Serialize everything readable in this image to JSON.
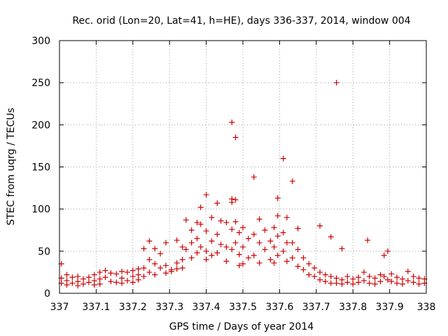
{
  "chart_data": {
    "type": "scatter",
    "title": "Rec. orid (Lon=20, Lat=41, h=HE), days 336-337, 2014, window 004",
    "xlabel": "GPS time / Days of year 2014",
    "ylabel": "STEC from uqrg / TECUs",
    "xlim": [
      337,
      338
    ],
    "ylim": [
      0,
      300
    ],
    "xticks": [
      "337",
      "337.1",
      "337.2",
      "337.3",
      "337.4",
      "337.5",
      "337.6",
      "337.7",
      "337.8",
      "337.9",
      "338"
    ],
    "yticks": [
      "0",
      "50",
      "100",
      "150",
      "200",
      "250",
      "300"
    ],
    "grid": true,
    "marker": "+",
    "color": "#cc0000",
    "series": [
      {
        "name": "STEC",
        "points": [
          [
            337.005,
            35
          ],
          [
            337.005,
            18
          ],
          [
            337.005,
            12
          ],
          [
            337.02,
            22
          ],
          [
            337.02,
            15
          ],
          [
            337.02,
            10
          ],
          [
            337.035,
            19
          ],
          [
            337.035,
            12
          ],
          [
            337.05,
            20
          ],
          [
            337.05,
            14
          ],
          [
            337.05,
            9
          ],
          [
            337.065,
            17
          ],
          [
            337.065,
            11
          ],
          [
            337.08,
            19
          ],
          [
            337.08,
            13
          ],
          [
            337.095,
            22
          ],
          [
            337.095,
            15
          ],
          [
            337.095,
            10
          ],
          [
            337.11,
            25
          ],
          [
            337.11,
            17
          ],
          [
            337.11,
            11
          ],
          [
            337.125,
            27
          ],
          [
            337.125,
            19
          ],
          [
            337.14,
            24
          ],
          [
            337.14,
            14
          ],
          [
            337.155,
            23
          ],
          [
            337.155,
            13
          ],
          [
            337.17,
            26
          ],
          [
            337.17,
            18
          ],
          [
            337.17,
            12
          ],
          [
            337.185,
            25
          ],
          [
            337.185,
            15
          ],
          [
            337.2,
            27
          ],
          [
            337.2,
            20
          ],
          [
            337.2,
            13
          ],
          [
            337.215,
            29
          ],
          [
            337.215,
            22
          ],
          [
            337.215,
            16
          ],
          [
            337.23,
            53
          ],
          [
            337.23,
            30
          ],
          [
            337.23,
            20
          ],
          [
            337.245,
            62
          ],
          [
            337.245,
            40
          ],
          [
            337.245,
            25
          ],
          [
            337.26,
            53
          ],
          [
            337.26,
            35
          ],
          [
            337.26,
            22
          ],
          [
            337.275,
            47
          ],
          [
            337.275,
            30
          ],
          [
            337.29,
            60
          ],
          [
            337.29,
            33
          ],
          [
            337.29,
            24
          ],
          [
            337.305,
            28
          ],
          [
            337.305,
            26
          ],
          [
            337.32,
            63
          ],
          [
            337.32,
            36
          ],
          [
            337.32,
            29
          ],
          [
            337.335,
            55
          ],
          [
            337.335,
            40
          ],
          [
            337.335,
            30
          ],
          [
            337.345,
            87
          ],
          [
            337.345,
            52
          ],
          [
            337.36,
            75
          ],
          [
            337.36,
            60
          ],
          [
            337.36,
            42
          ],
          [
            337.375,
            84
          ],
          [
            337.375,
            65
          ],
          [
            337.375,
            48
          ],
          [
            337.385,
            102
          ],
          [
            337.385,
            82
          ],
          [
            337.385,
            55
          ],
          [
            337.4,
            117
          ],
          [
            337.4,
            74
          ],
          [
            337.4,
            50
          ],
          [
            337.4,
            40
          ],
          [
            337.415,
            90
          ],
          [
            337.415,
            62
          ],
          [
            337.415,
            45
          ],
          [
            337.43,
            107
          ],
          [
            337.43,
            70
          ],
          [
            337.43,
            48
          ],
          [
            337.44,
            86
          ],
          [
            337.44,
            58
          ],
          [
            337.455,
            84
          ],
          [
            337.455,
            55
          ],
          [
            337.455,
            38
          ],
          [
            337.47,
            203
          ],
          [
            337.47,
            112
          ],
          [
            337.47,
            108
          ],
          [
            337.47,
            76
          ],
          [
            337.47,
            52
          ],
          [
            337.48,
            185
          ],
          [
            337.48,
            111
          ],
          [
            337.48,
            85
          ],
          [
            337.48,
            60
          ],
          [
            337.49,
            72
          ],
          [
            337.49,
            46
          ],
          [
            337.49,
            33
          ],
          [
            337.5,
            78
          ],
          [
            337.5,
            55
          ],
          [
            337.5,
            35
          ],
          [
            337.515,
            65
          ],
          [
            337.515,
            42
          ],
          [
            337.53,
            138
          ],
          [
            337.53,
            70
          ],
          [
            337.53,
            45
          ],
          [
            337.545,
            88
          ],
          [
            337.545,
            60
          ],
          [
            337.545,
            36
          ],
          [
            337.56,
            75
          ],
          [
            337.56,
            52
          ],
          [
            337.575,
            62
          ],
          [
            337.575,
            40
          ],
          [
            337.585,
            78
          ],
          [
            337.585,
            55
          ],
          [
            337.585,
            36
          ],
          [
            337.595,
            113
          ],
          [
            337.595,
            92
          ],
          [
            337.595,
            68
          ],
          [
            337.595,
            45
          ],
          [
            337.61,
            160
          ],
          [
            337.61,
            72
          ],
          [
            337.61,
            50
          ],
          [
            337.62,
            90
          ],
          [
            337.62,
            60
          ],
          [
            337.62,
            38
          ],
          [
            337.635,
            133
          ],
          [
            337.635,
            60
          ],
          [
            337.635,
            42
          ],
          [
            337.65,
            77
          ],
          [
            337.65,
            52
          ],
          [
            337.65,
            32
          ],
          [
            337.665,
            42
          ],
          [
            337.665,
            28
          ],
          [
            337.68,
            35
          ],
          [
            337.68,
            22
          ],
          [
            337.695,
            30
          ],
          [
            337.695,
            20
          ],
          [
            337.71,
            80
          ],
          [
            337.71,
            25
          ],
          [
            337.71,
            16
          ],
          [
            337.725,
            22
          ],
          [
            337.725,
            14
          ],
          [
            337.74,
            67
          ],
          [
            337.74,
            20
          ],
          [
            337.74,
            12
          ],
          [
            337.755,
            250
          ],
          [
            337.755,
            18
          ],
          [
            337.755,
            12
          ],
          [
            337.77,
            53
          ],
          [
            337.77,
            16
          ],
          [
            337.77,
            11
          ],
          [
            337.785,
            20
          ],
          [
            337.785,
            13
          ],
          [
            337.8,
            17
          ],
          [
            337.8,
            11
          ],
          [
            337.815,
            19
          ],
          [
            337.815,
            13
          ],
          [
            337.83,
            25
          ],
          [
            337.83,
            15
          ],
          [
            337.84,
            63
          ],
          [
            337.845,
            20
          ],
          [
            337.845,
            12
          ],
          [
            337.86,
            18
          ],
          [
            337.86,
            11
          ],
          [
            337.875,
            22
          ],
          [
            337.875,
            14
          ],
          [
            337.885,
            45
          ],
          [
            337.885,
            20
          ],
          [
            337.895,
            50
          ],
          [
            337.895,
            16
          ],
          [
            337.905,
            23
          ],
          [
            337.905,
            14
          ],
          [
            337.92,
            19
          ],
          [
            337.92,
            12
          ],
          [
            337.935,
            17
          ],
          [
            337.935,
            11
          ],
          [
            337.95,
            26
          ],
          [
            337.95,
            15
          ],
          [
            337.965,
            20
          ],
          [
            337.965,
            13
          ],
          [
            337.98,
            18
          ],
          [
            337.98,
            11
          ],
          [
            337.995,
            17
          ],
          [
            337.995,
            12
          ]
        ]
      }
    ]
  }
}
